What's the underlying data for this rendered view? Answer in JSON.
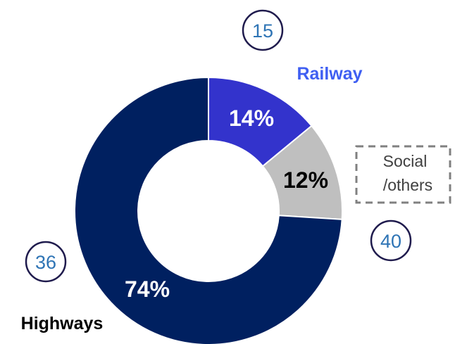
{
  "chart_data": {
    "type": "pie",
    "style": "donut",
    "slices": [
      {
        "label": "Railway",
        "value": 14,
        "value_label": "14%",
        "color": "#3333CC"
      },
      {
        "label": "Social /others",
        "value": 12,
        "value_label": "12%",
        "color": "#BFBFBF"
      },
      {
        "label": "Highways",
        "value": 74,
        "value_label": "74%",
        "color": "#002060"
      }
    ],
    "annotations": [
      "15",
      "40",
      "36"
    ],
    "category_labels": {
      "railway": "Railway",
      "social_line1": "Social",
      "social_line2": "/others",
      "highways": "Highways"
    },
    "colors": {
      "railway_label": "#3F5FF2",
      "highways_label": "#000000",
      "annotation_text": "#2E74B5",
      "annotation_circle": "#1F1B4D",
      "dashed_box": "#808080"
    }
  }
}
